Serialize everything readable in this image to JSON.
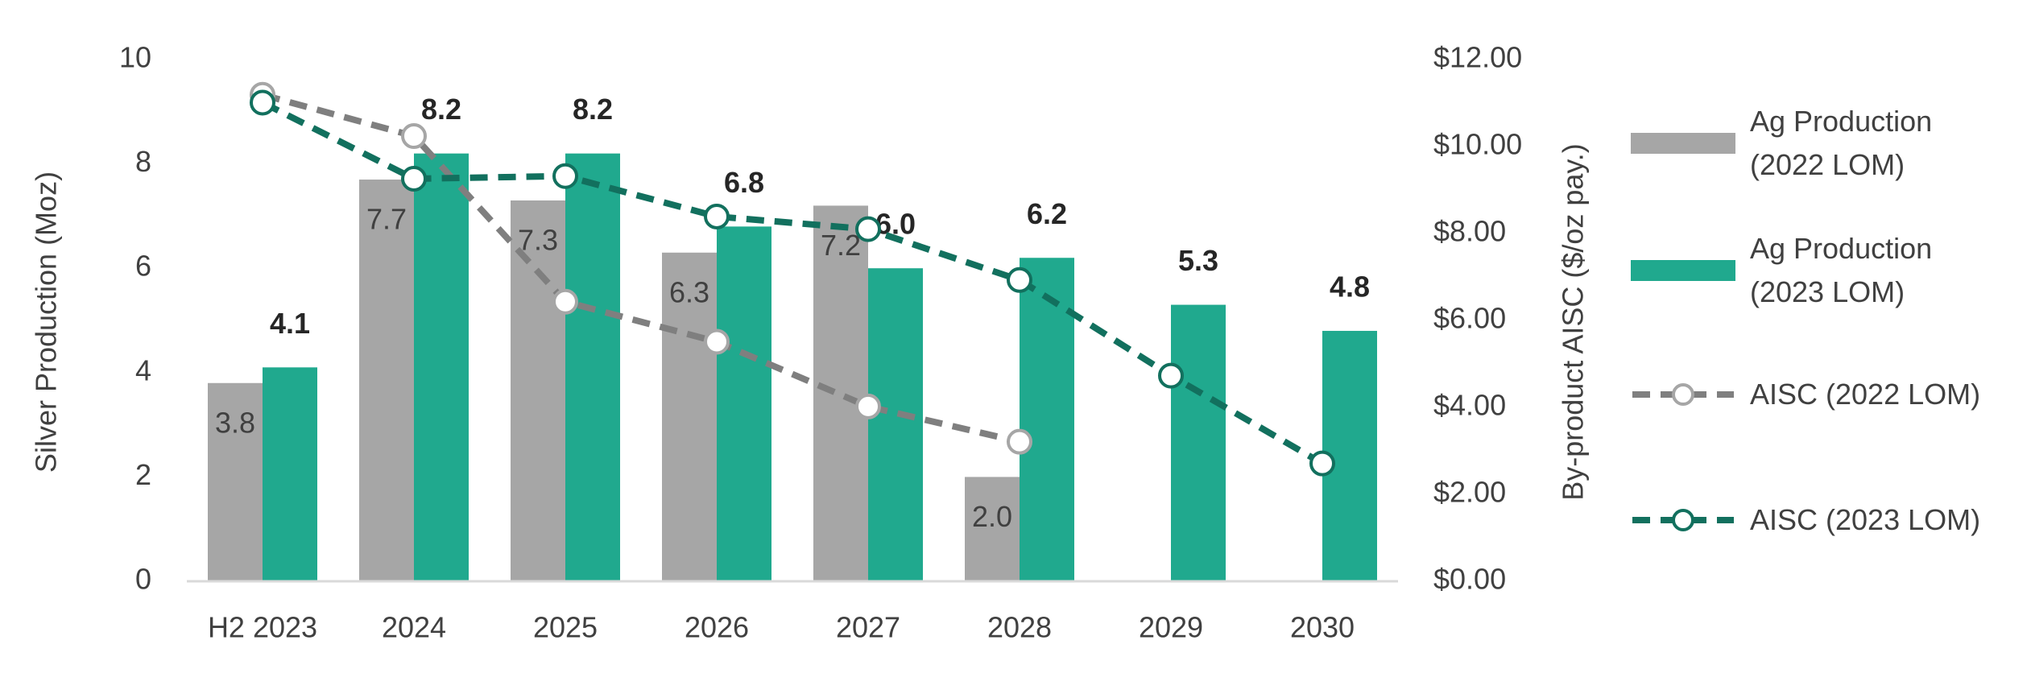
{
  "chart_data": {
    "type": "bar",
    "y_label": "Silver Production (Moz)",
    "y2_label": "By-product AISC ($/oz pay.)",
    "categories": [
      "H2 2023",
      "2024",
      "2025",
      "2026",
      "2027",
      "2028",
      "2029",
      "2030"
    ],
    "ylim": [
      0,
      10
    ],
    "yticks": [
      0,
      2,
      4,
      6,
      8,
      10
    ],
    "y2lim": [
      0,
      12
    ],
    "y2ticks": [
      {
        "value": 0,
        "label": "$0.00"
      },
      {
        "value": 2,
        "label": "$2.00"
      },
      {
        "value": 4,
        "label": "$4.00"
      },
      {
        "value": 6,
        "label": "$6.00"
      },
      {
        "value": 8,
        "label": "$8.00"
      },
      {
        "value": 10,
        "label": "$10.00"
      },
      {
        "value": 12,
        "label": "$12.00"
      }
    ],
    "grid": false,
    "legend": "right",
    "series": [
      {
        "name": "Ag Production (2022 LOM)",
        "color": "#a6a6a6",
        "values": [
          3.8,
          7.7,
          7.3,
          6.3,
          7.2,
          2.0,
          null,
          null
        ],
        "value_labels": [
          "3.8",
          "7.7",
          "7.3",
          "6.3",
          "7.2",
          "2.0",
          null,
          null
        ]
      },
      {
        "name": "Ag Production (2023 LOM)",
        "color": "#20a98e",
        "values": [
          4.1,
          8.2,
          8.2,
          6.8,
          6.0,
          6.2,
          5.3,
          4.8
        ],
        "value_labels": [
          "4.1",
          "8.2",
          "8.2",
          "6.8",
          "6.0",
          "6.2",
          "5.3",
          "4.8"
        ]
      },
      {
        "name": "AISC (2022 LOM)",
        "color": "#7f7f7f",
        "marker_color": "#a6a6a6",
        "axis": "y2",
        "values": [
          11.19,
          10.24,
          6.43,
          5.51,
          4.02,
          3.21,
          null,
          null
        ]
      },
      {
        "name": "AISC (2023 LOM)",
        "color": "#12705e",
        "marker_color": "#12705e",
        "axis": "y2",
        "values": [
          11.01,
          9.26,
          9.32,
          8.39,
          8.1,
          6.93,
          4.73,
          2.71
        ]
      }
    ]
  }
}
